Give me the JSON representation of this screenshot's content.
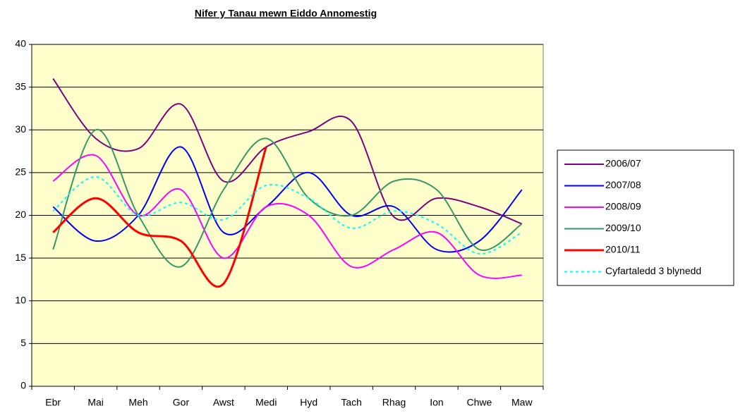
{
  "chart_data": {
    "type": "line",
    "title": "Nifer y Tanau mewn Eiddo Annomestig",
    "categories": [
      "Ebr",
      "Mai",
      "Meh",
      "Gor",
      "Awst",
      "Medi",
      "Hyd",
      "Tach",
      "Rhag",
      "Ion",
      "Chwe",
      "Maw"
    ],
    "series": [
      {
        "name": "2006/07",
        "color": "#800080",
        "values": [
          36,
          29,
          27.8,
          33,
          24,
          28,
          29.8,
          31,
          19.8,
          22,
          21,
          19
        ]
      },
      {
        "name": "2007/08",
        "color": "#0000ff",
        "values": [
          21,
          17,
          20,
          28,
          18,
          21,
          25,
          20,
          21,
          16,
          17,
          23
        ]
      },
      {
        "name": "2008/09",
        "color": "#ff00ff",
        "values": [
          24,
          27,
          20,
          23,
          15,
          21,
          20,
          14,
          16,
          18,
          13,
          13
        ]
      },
      {
        "name": "2009/10",
        "color": "#339966",
        "values": [
          16,
          30,
          20,
          14,
          23,
          29,
          22,
          20,
          24,
          23,
          16,
          19
        ]
      },
      {
        "name": "2010/11",
        "color": "#ff0000",
        "width": 3,
        "values": [
          18,
          22,
          18,
          17,
          12,
          28,
          null,
          null,
          null,
          null,
          null,
          null
        ]
      },
      {
        "name": "Cyfartaledd 3 blynedd",
        "color": "#00ffff",
        "dashed": true,
        "values": [
          20.5,
          24.5,
          20,
          21.5,
          19.5,
          23.5,
          22,
          18.5,
          20.5,
          19,
          15.5,
          18
        ]
      }
    ],
    "ylim": [
      0,
      40
    ],
    "yticks": [
      0,
      5,
      10,
      15,
      20,
      25,
      30,
      35,
      40
    ],
    "grid": true,
    "legend": "right"
  }
}
